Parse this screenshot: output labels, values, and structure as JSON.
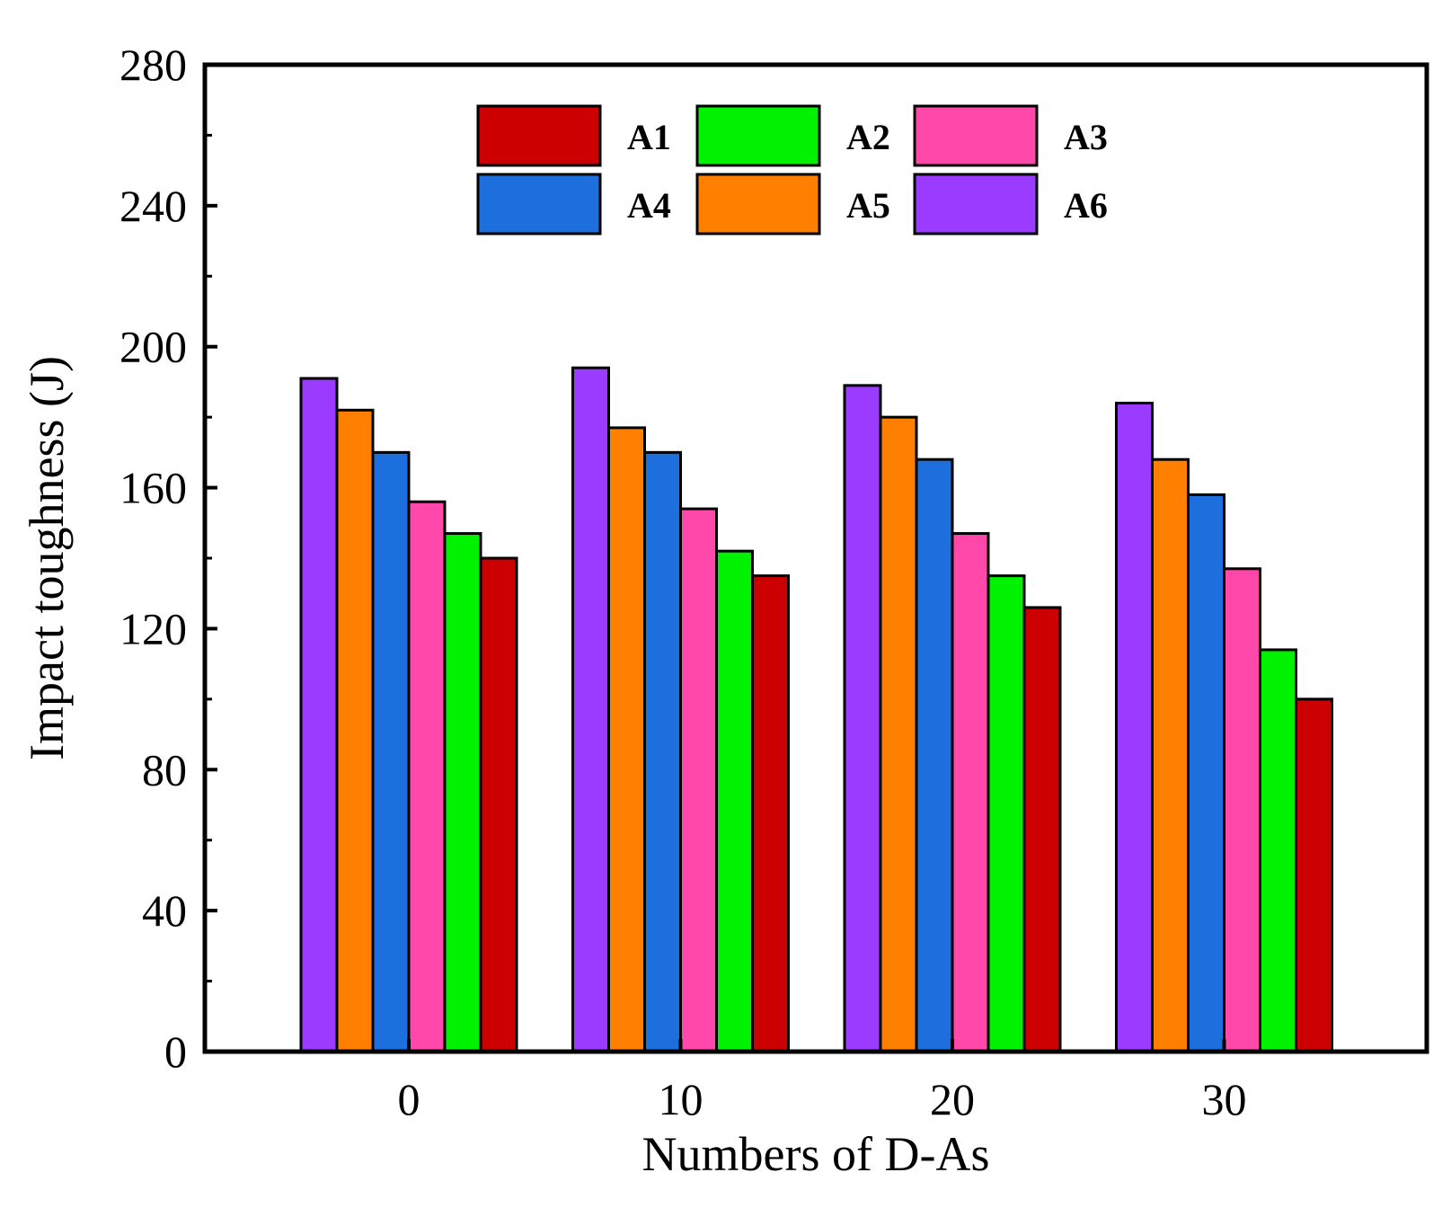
{
  "chart_data": {
    "type": "bar",
    "xlabel": "Numbers of D-As",
    "ylabel": "Impact toughness (J)",
    "categories": [
      "0",
      "10",
      "20",
      "30"
    ],
    "ylim": [
      0,
      280
    ],
    "yticks": [
      0,
      40,
      80,
      120,
      160,
      200,
      240,
      280
    ],
    "series": [
      {
        "name": "A6",
        "color": "#9B3BFF",
        "values": [
          191,
          194,
          189,
          184
        ]
      },
      {
        "name": "A5",
        "color": "#FF8000",
        "values": [
          182,
          177,
          180,
          168
        ]
      },
      {
        "name": "A4",
        "color": "#1C6FDD",
        "values": [
          170,
          170,
          168,
          158
        ]
      },
      {
        "name": "A3",
        "color": "#FF48AA",
        "values": [
          156,
          154,
          147,
          137
        ]
      },
      {
        "name": "A2",
        "color": "#00F200",
        "values": [
          147,
          142,
          135,
          114
        ]
      },
      {
        "name": "A1",
        "color": "#CC0000",
        "values": [
          140,
          135,
          126,
          100
        ]
      }
    ],
    "legend": {
      "placement": "top-center",
      "order": [
        "A1",
        "A2",
        "A3",
        "A4",
        "A5",
        "A6"
      ]
    },
    "grid": false
  }
}
